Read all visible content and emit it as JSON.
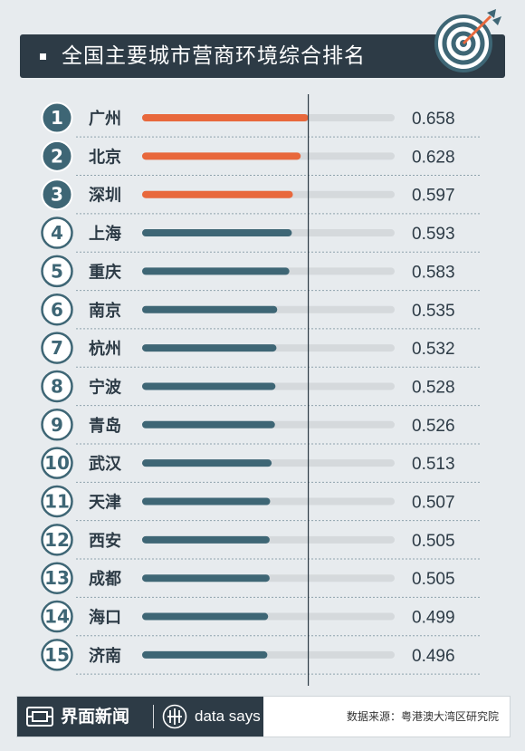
{
  "header": {
    "title": "全国主要城市营商环境综合排名",
    "target_icon": "target-with-arrow-icon"
  },
  "chart_data": {
    "type": "bar",
    "orientation": "horizontal",
    "title": "全国主要城市营商环境综合排名",
    "ranks": [
      "1",
      "2",
      "3",
      "4",
      "5",
      "6",
      "7",
      "8",
      "9",
      "10",
      "11",
      "12",
      "13",
      "14",
      "15"
    ],
    "categories": [
      "广州",
      "北京",
      "深圳",
      "上海",
      "重庆",
      "南京",
      "杭州",
      "宁波",
      "青岛",
      "武汉",
      "天津",
      "西安",
      "成都",
      "海口",
      "济南"
    ],
    "values": [
      0.658,
      0.628,
      0.597,
      0.593,
      0.583,
      0.535,
      0.532,
      0.528,
      0.526,
      0.513,
      0.507,
      0.505,
      0.505,
      0.499,
      0.496
    ],
    "value_labels": [
      "0.658",
      "0.628",
      "0.597",
      "0.593",
      "0.583",
      "0.535",
      "0.532",
      "0.528",
      "0.526",
      "0.513",
      "0.507",
      "0.505",
      "0.505",
      "0.499",
      "0.496"
    ],
    "xlim": [
      0,
      1
    ],
    "reference_value": 0.658,
    "highlight_top_n": 3,
    "colors": {
      "highlight": "#e8683c",
      "normal": "#3e6675",
      "track": "#d5d9dc",
      "rank_fill": "#3e6675",
      "rank_outline": "#3e6675"
    },
    "grid": false
  },
  "footer": {
    "brand": "界面新闻",
    "tagline": "data says",
    "source": "数据来源：粤港澳大湾区研究院",
    "brand_icon": "jiemian-logo-icon",
    "datasays_icon": "data-says-icon"
  }
}
